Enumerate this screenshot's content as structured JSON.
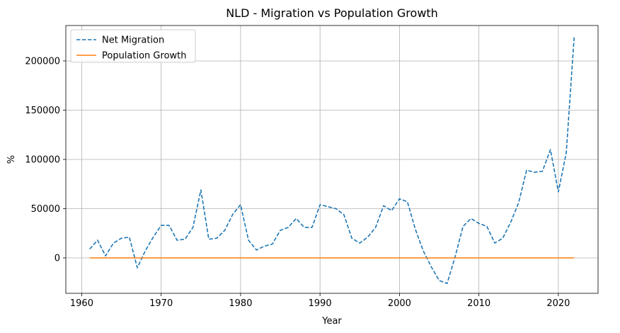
{
  "chart_data": {
    "type": "line",
    "title": "NLD - Migration vs Population Growth",
    "xlabel": "Year",
    "ylabel": "%",
    "xlim": [
      1958,
      2025
    ],
    "ylim": [
      -36000,
      236000
    ],
    "xticks": [
      1960,
      1970,
      1980,
      1990,
      2000,
      2010,
      2020
    ],
    "yticks": [
      0,
      50000,
      100000,
      150000,
      200000
    ],
    "grid": true,
    "legend_position": "top-left",
    "series": [
      {
        "name": "Net Migration",
        "color": "#1f77b4",
        "style": "dashed",
        "x": [
          1961,
          1962,
          1963,
          1964,
          1965,
          1966,
          1967,
          1968,
          1969,
          1970,
          1971,
          1972,
          1973,
          1974,
          1975,
          1976,
          1977,
          1978,
          1979,
          1980,
          1981,
          1982,
          1983,
          1984,
          1985,
          1986,
          1987,
          1988,
          1989,
          1990,
          1991,
          1992,
          1993,
          1994,
          1995,
          1996,
          1997,
          1998,
          1999,
          2000,
          2001,
          2002,
          2003,
          2004,
          2005,
          2006,
          2007,
          2008,
          2009,
          2010,
          2011,
          2012,
          2013,
          2014,
          2015,
          2016,
          2017,
          2018,
          2019,
          2020,
          2021,
          2022
        ],
        "y": [
          9000,
          18000,
          2000,
          15000,
          20000,
          21000,
          -10000,
          7000,
          21000,
          33000,
          33000,
          18000,
          19000,
          31000,
          69000,
          19000,
          20000,
          28000,
          44000,
          54000,
          18000,
          8000,
          12000,
          14000,
          28000,
          31000,
          40000,
          31000,
          31000,
          54000,
          52000,
          50000,
          44000,
          20000,
          15000,
          21000,
          31000,
          53000,
          48000,
          60000,
          57000,
          29000,
          7000,
          -9000,
          -23000,
          -26000,
          1000,
          32000,
          40000,
          35000,
          32000,
          15000,
          20000,
          36000,
          56000,
          89000,
          87000,
          88000,
          110000,
          67000,
          107000,
          225000
        ]
      },
      {
        "name": "Population Growth",
        "color": "#ff7f0e",
        "style": "solid",
        "x": [
          1961,
          1962,
          1963,
          1964,
          1965,
          1966,
          1967,
          1968,
          1969,
          1970,
          1971,
          1972,
          1973,
          1974,
          1975,
          1976,
          1977,
          1978,
          1979,
          1980,
          1981,
          1982,
          1983,
          1984,
          1985,
          1986,
          1987,
          1988,
          1989,
          1990,
          1991,
          1992,
          1993,
          1994,
          1995,
          1996,
          1997,
          1998,
          1999,
          2000,
          2001,
          2002,
          2003,
          2004,
          2005,
          2006,
          2007,
          2008,
          2009,
          2010,
          2011,
          2012,
          2013,
          2014,
          2015,
          2016,
          2017,
          2018,
          2019,
          2020,
          2021,
          2022
        ],
        "y": [
          1.4,
          1.4,
          1.5,
          1.4,
          1.4,
          1.3,
          1.2,
          1.1,
          1.2,
          1.3,
          1.3,
          1.0,
          0.9,
          0.8,
          0.9,
          0.7,
          0.6,
          0.6,
          0.7,
          0.8,
          0.6,
          0.4,
          0.4,
          0.4,
          0.5,
          0.6,
          0.7,
          0.6,
          0.7,
          0.7,
          0.8,
          0.8,
          0.7,
          0.6,
          0.5,
          0.5,
          0.6,
          0.7,
          0.7,
          0.7,
          0.8,
          0.6,
          0.5,
          0.4,
          0.3,
          0.1,
          0.2,
          0.4,
          0.5,
          0.5,
          0.5,
          0.3,
          0.3,
          0.4,
          0.4,
          0.5,
          0.6,
          0.6,
          0.6,
          0.5,
          0.5,
          1.4
        ]
      }
    ]
  }
}
